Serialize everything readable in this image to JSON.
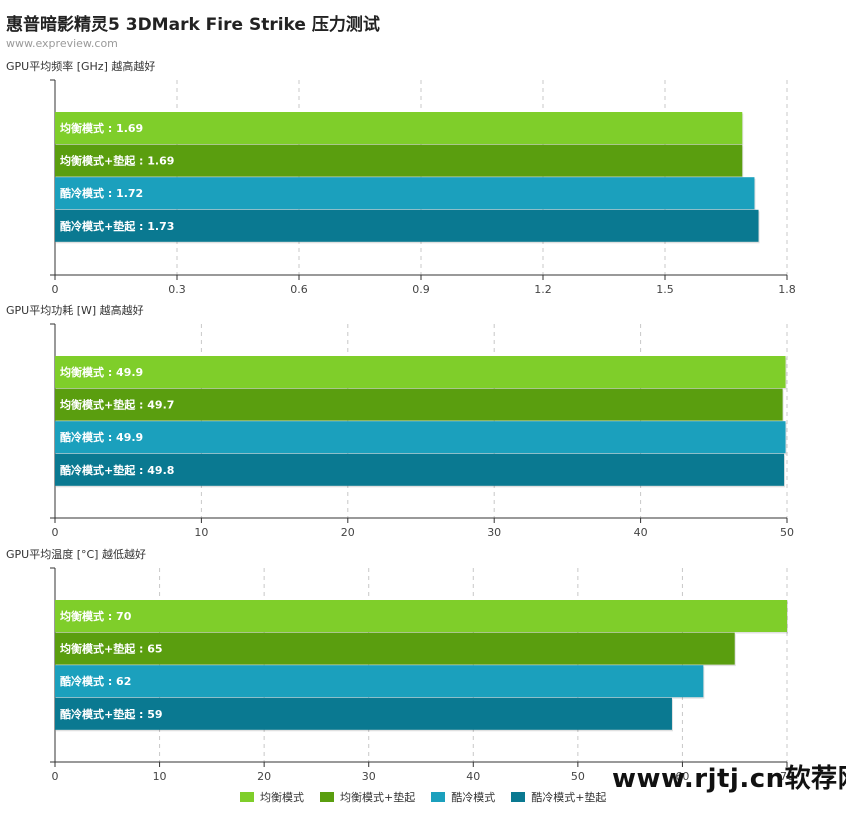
{
  "title": "惠普暗影精灵5 3DMark Fire Strike 压力测试",
  "source": "www.expreview.com",
  "watermark": "www.rjtj.cn软荐网",
  "colors": {
    "balanced": "#7fce2a",
    "balanced_pad": "#5a9e0f",
    "cool": "#1ba0bd",
    "cool_pad": "#0a7991"
  },
  "legend": [
    {
      "label": "均衡模式",
      "color": "#7fce2a"
    },
    {
      "label": "均衡模式+垫起",
      "color": "#5a9e0f"
    },
    {
      "label": "酷冷模式",
      "color": "#1ba0bd"
    },
    {
      "label": "酷冷模式+垫起",
      "color": "#0a7991"
    }
  ],
  "chart_data": [
    {
      "type": "bar",
      "orientation": "horizontal",
      "title": "GPU平均频率 [GHz] 越高越好",
      "bars": [
        {
          "label": "均衡模式 : 1.69",
          "value": 1.69,
          "color": "#7fce2a"
        },
        {
          "label": "均衡模式+垫起 : 1.69",
          "value": 1.69,
          "color": "#5a9e0f"
        },
        {
          "label": "酷冷模式 : 1.72",
          "value": 1.72,
          "color": "#1ba0bd"
        },
        {
          "label": "酷冷模式+垫起 : 1.73",
          "value": 1.73,
          "color": "#0a7991"
        }
      ],
      "xlim": [
        0,
        1.8
      ],
      "ticks": [
        "0",
        "0.3",
        "0.6",
        "0.9",
        "1.2",
        "1.5",
        "1.8"
      ],
      "grid": true
    },
    {
      "type": "bar",
      "orientation": "horizontal",
      "title": "GPU平均功耗 [W] 越高越好",
      "bars": [
        {
          "label": "均衡模式 : 49.9",
          "value": 49.9,
          "color": "#7fce2a"
        },
        {
          "label": "均衡模式+垫起 : 49.7",
          "value": 49.7,
          "color": "#5a9e0f"
        },
        {
          "label": "酷冷模式 : 49.9",
          "value": 49.9,
          "color": "#1ba0bd"
        },
        {
          "label": "酷冷模式+垫起 : 49.8",
          "value": 49.8,
          "color": "#0a7991"
        }
      ],
      "xlim": [
        0,
        50
      ],
      "ticks": [
        "0",
        "10",
        "20",
        "30",
        "40",
        "50"
      ],
      "grid": true
    },
    {
      "type": "bar",
      "orientation": "horizontal",
      "title": "GPU平均温度 [°C] 越低越好",
      "bars": [
        {
          "label": "均衡模式 : 70",
          "value": 70,
          "color": "#7fce2a"
        },
        {
          "label": "均衡模式+垫起 : 65",
          "value": 65,
          "color": "#5a9e0f"
        },
        {
          "label": "酷冷模式 : 62",
          "value": 62,
          "color": "#1ba0bd"
        },
        {
          "label": "酷冷模式+垫起 : 59",
          "value": 59,
          "color": "#0a7991"
        }
      ],
      "xlim": [
        0,
        70
      ],
      "ticks": [
        "0",
        "10",
        "20",
        "30",
        "40",
        "50",
        "60",
        "70"
      ],
      "grid": true
    }
  ]
}
